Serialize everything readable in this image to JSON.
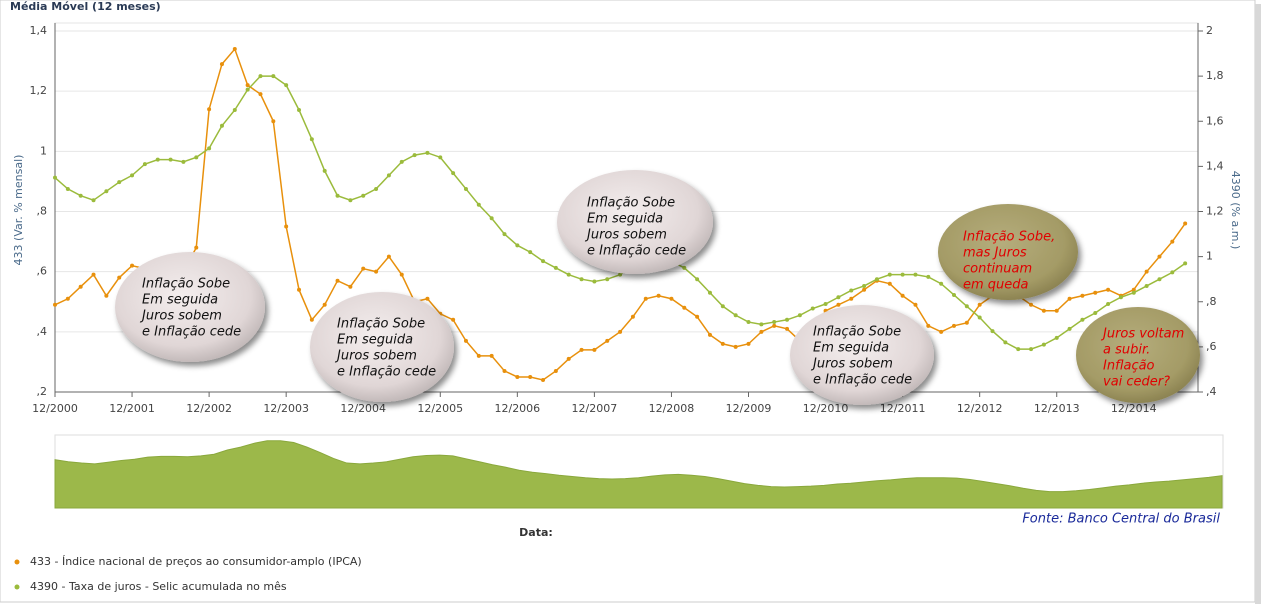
{
  "chart_data": {
    "type": "line",
    "title": "Média Móvel (12 meses)",
    "y_label": "433 (Var. % mensal)",
    "y2_label": "4390 (% a.m.)",
    "x_label": "Data:",
    "source": "Fonte: Banco Central do Brasil",
    "x": [
      "12/2000",
      "02/2001",
      "04/2001",
      "06/2001",
      "08/2001",
      "10/2001",
      "12/2001",
      "02/2002",
      "04/2002",
      "06/2002",
      "08/2002",
      "10/2002",
      "12/2002",
      "02/2003",
      "04/2003",
      "06/2003",
      "08/2003",
      "10/2003",
      "12/2003",
      "02/2004",
      "04/2004",
      "06/2004",
      "08/2004",
      "10/2004",
      "12/2004",
      "02/2005",
      "04/2005",
      "06/2005",
      "08/2005",
      "10/2005",
      "12/2005",
      "02/2006",
      "04/2006",
      "06/2006",
      "08/2006",
      "10/2006",
      "12/2006",
      "02/2007",
      "04/2007",
      "06/2007",
      "08/2007",
      "10/2007",
      "12/2007",
      "02/2008",
      "04/2008",
      "06/2008",
      "08/2008",
      "10/2008",
      "12/2008",
      "02/2009",
      "04/2009",
      "06/2009",
      "08/2009",
      "10/2009",
      "12/2009",
      "02/2010",
      "04/2010",
      "06/2010",
      "08/2010",
      "10/2010",
      "12/2010",
      "02/2011",
      "04/2011",
      "06/2011",
      "08/2011",
      "10/2011",
      "12/2011",
      "02/2012",
      "04/2012",
      "06/2012",
      "08/2012",
      "10/2012",
      "12/2012",
      "02/2013",
      "04/2013",
      "06/2013",
      "08/2013",
      "10/2013",
      "12/2013",
      "02/2014",
      "04/2014",
      "06/2014",
      "08/2014",
      "10/2014",
      "12/2014",
      "02/2015",
      "04/2015",
      "06/2015",
      "08/2015"
    ],
    "xlim": [
      "12/2000",
      "10/2015"
    ],
    "xticks": [
      "12/2000",
      "12/2001",
      "12/2002",
      "12/2003",
      "12/2004",
      "12/2005",
      "12/2006",
      "12/2007",
      "12/2008",
      "12/2009",
      "12/2010",
      "12/2011",
      "12/2012",
      "12/2013",
      "12/2014"
    ],
    "ylim": [
      0.2,
      1.4
    ],
    "yticks": [
      {
        "value": 0.2,
        "label": ",2"
      },
      {
        "value": 0.4,
        "label": ",4"
      },
      {
        "value": 0.6,
        "label": ",6"
      },
      {
        "value": 0.8,
        "label": ",8"
      },
      1,
      {
        "value": 1.2,
        "label": "1,2"
      },
      {
        "value": 1.4,
        "label": "1,4"
      }
    ],
    "y2lim": [
      0.4,
      2
    ],
    "y2ticks": [
      {
        "value": 0.4,
        "label": ",4"
      },
      {
        "value": 0.6,
        "label": ",6"
      },
      {
        "value": 0.8,
        "label": ",8"
      },
      1,
      {
        "value": 1.2,
        "label": "1,2"
      },
      {
        "value": 1.4,
        "label": "1,4"
      },
      {
        "value": 1.6,
        "label": "1,6"
      },
      {
        "value": 1.8,
        "label": "1,8"
      },
      2
    ],
    "grid": true,
    "series": [
      {
        "name": "433 - Índice nacional de preços ao consumidor-amplo (IPCA)",
        "color": "#e8900c",
        "values": [
          0.49,
          0.51,
          0.55,
          0.59,
          0.52,
          0.58,
          0.62,
          0.61,
          0.63,
          0.62,
          0.6,
          0.68,
          1.14,
          1.29,
          1.34,
          1.22,
          1.19,
          1.1,
          0.75,
          0.54,
          0.44,
          0.49,
          0.57,
          0.55,
          0.61,
          0.6,
          0.65,
          0.59,
          0.5,
          0.51,
          0.46,
          0.44,
          0.37,
          0.32,
          0.32,
          0.27,
          0.25,
          0.25,
          0.24,
          0.27,
          0.31,
          0.34,
          0.34,
          0.37,
          0.4,
          0.45,
          0.51,
          0.52,
          0.51,
          0.48,
          0.45,
          0.39,
          0.36,
          0.35,
          0.36,
          0.4,
          0.42,
          0.41,
          0.37,
          0.4,
          0.47,
          0.49,
          0.51,
          0.54,
          0.57,
          0.56,
          0.52,
          0.49,
          0.42,
          0.4,
          0.42,
          0.43,
          0.49,
          0.52,
          0.53,
          0.52,
          0.49,
          0.47,
          0.47,
          0.51,
          0.52,
          0.53,
          0.54,
          0.52,
          0.54,
          0.6,
          0.65,
          0.7,
          0.76
        ]
      },
      {
        "name": "4390 - Taxa de juros - Selic acumulada no mês",
        "color": "#9bbb3c",
        "axis": "y2",
        "values": [
          1.35,
          1.3,
          1.27,
          1.25,
          1.29,
          1.33,
          1.36,
          1.41,
          1.43,
          1.43,
          1.42,
          1.44,
          1.48,
          1.58,
          1.65,
          1.74,
          1.8,
          1.8,
          1.76,
          1.65,
          1.52,
          1.38,
          1.27,
          1.25,
          1.27,
          1.3,
          1.36,
          1.42,
          1.45,
          1.46,
          1.44,
          1.37,
          1.3,
          1.23,
          1.17,
          1.1,
          1.05,
          1.02,
          0.98,
          0.95,
          0.92,
          0.9,
          0.89,
          0.9,
          0.92,
          0.96,
          0.99,
          1.0,
          0.98,
          0.95,
          0.9,
          0.84,
          0.78,
          0.74,
          0.71,
          0.7,
          0.71,
          0.72,
          0.74,
          0.77,
          0.79,
          0.82,
          0.85,
          0.87,
          0.9,
          0.92,
          0.92,
          0.92,
          0.91,
          0.88,
          0.83,
          0.78,
          0.73,
          0.67,
          0.62,
          0.59,
          0.59,
          0.61,
          0.64,
          0.68,
          0.72,
          0.75,
          0.79,
          0.82,
          0.84,
          0.87,
          0.9,
          0.93,
          0.97
        ]
      }
    ],
    "annotations": [
      {
        "lines": [
          "Inflação Sobe",
          "Em seguida",
          "Juros sobem",
          "e Inflação cede"
        ]
      },
      {
        "lines": [
          "Inflação Sobe",
          "Em seguida",
          "Juros sobem",
          "e Inflação cede"
        ]
      },
      {
        "lines": [
          "Inflação Sobe",
          "Em seguida",
          "Juros sobem",
          "e Inflação cede"
        ]
      },
      {
        "lines": [
          "Inflação Sobe",
          "Em seguida",
          "Juros sobem",
          "e Inflação cede"
        ]
      },
      {
        "lines": [
          "Inflação Sobe,",
          "mas Juros",
          "continuam",
          "em queda"
        ]
      },
      {
        "lines": [
          "Juros voltam",
          "a subir.",
          "Inflação",
          "vai ceder?"
        ]
      }
    ]
  }
}
